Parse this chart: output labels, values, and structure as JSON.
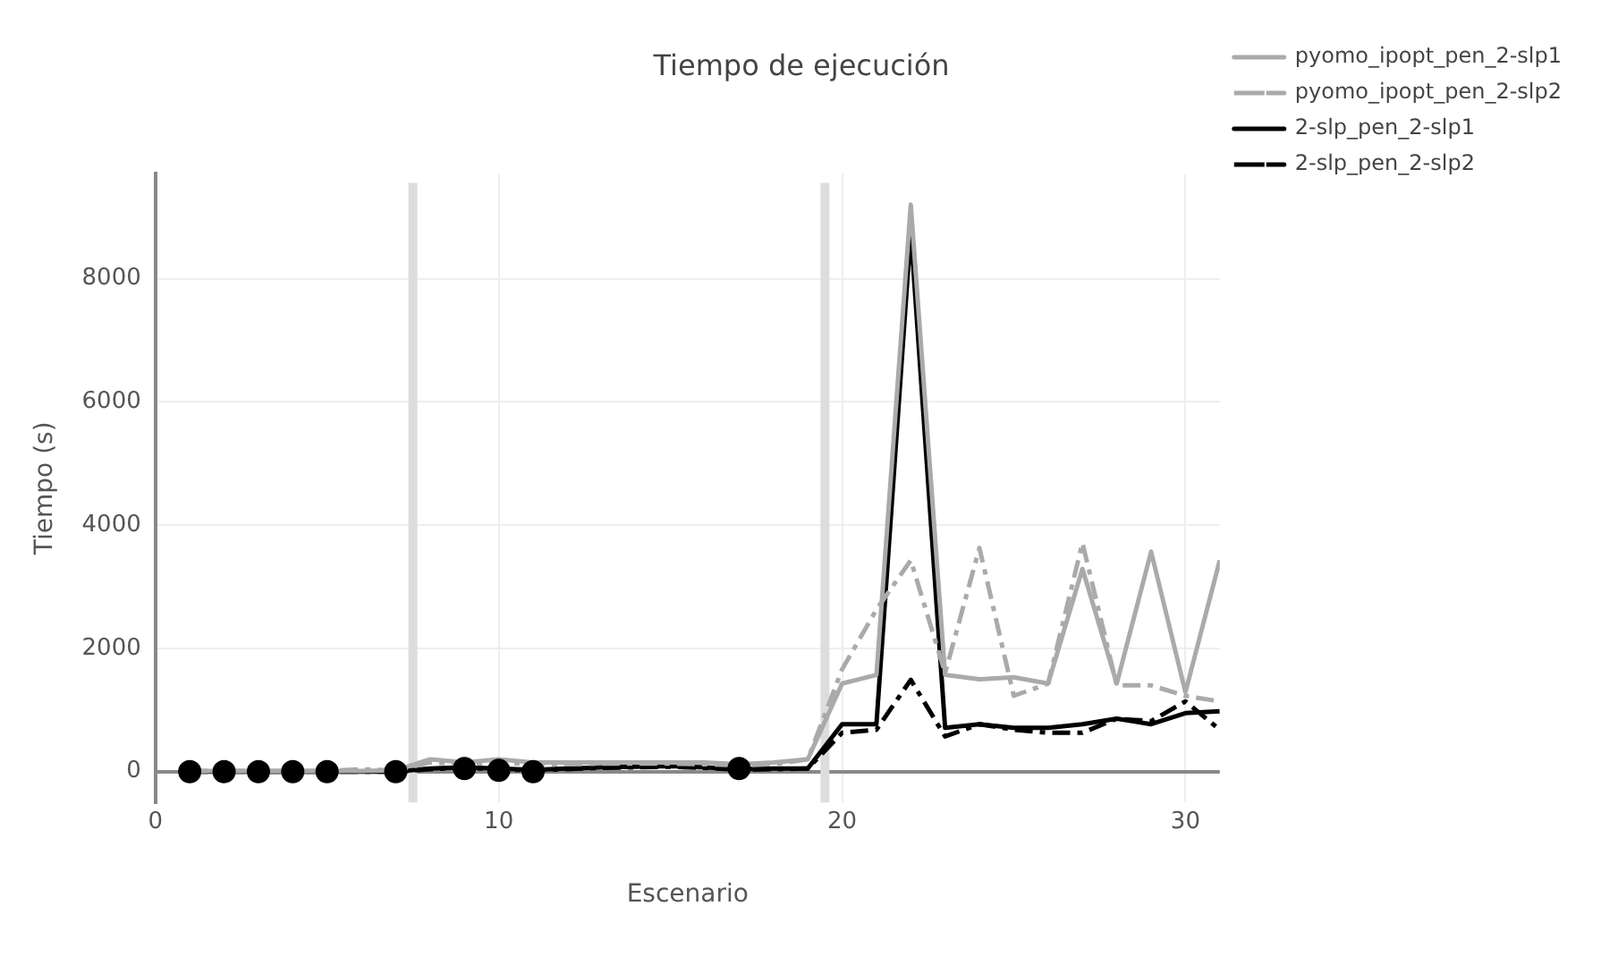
{
  "chart_data": {
    "type": "line",
    "title": "Tiempo de ejecución",
    "xlabel": "Escenario",
    "ylabel": "Tiempo (s)",
    "x": [
      1,
      2,
      3,
      4,
      5,
      6,
      7,
      8,
      9,
      10,
      11,
      12,
      13,
      14,
      15,
      16,
      17,
      18,
      19,
      20,
      21,
      22,
      23,
      24,
      25,
      26,
      27,
      28,
      29,
      30,
      31
    ],
    "xlim": [
      0,
      31
    ],
    "xticks": [
      0,
      10,
      20,
      30
    ],
    "ylim": [
      -500,
      9700
    ],
    "yticks": [
      0,
      2000,
      4000,
      6000,
      8000
    ],
    "grid": true,
    "legend": "top right",
    "marker": "none",
    "ref_lines": [
      {
        "axis": "x",
        "value": 7.5,
        "color": "#dddddd"
      },
      {
        "axis": "x",
        "value": 19.5,
        "color": "#dddddd"
      }
    ],
    "series": [
      {
        "name": "pyomo_ipopt_pen_2-slp1",
        "color": "#aaaaaa",
        "line_style": "solid",
        "values": [
          10,
          10,
          10,
          10,
          10,
          10,
          20,
          200,
          150,
          200,
          150,
          150,
          150,
          150,
          150,
          150,
          120,
          150,
          200,
          1430,
          1570,
          9200,
          1570,
          1500,
          1530,
          1430,
          3290,
          1430,
          3570,
          1290,
          3430
        ]
      },
      {
        "name": "pyomo_ipopt_pen_2-slp2",
        "color": "#aaaaaa",
        "line_style": "dashed",
        "values": [
          10,
          10,
          10,
          10,
          10,
          40,
          20,
          150,
          120,
          150,
          120,
          120,
          130,
          130,
          130,
          120,
          100,
          120,
          200,
          1660,
          2630,
          3430,
          1600,
          3630,
          1230,
          1430,
          3710,
          1400,
          1400,
          1230,
          1140
        ]
      },
      {
        "name": "2-slp_pen_2-slp1",
        "color": "#000000",
        "line_style": "solid",
        "values": [
          0,
          0,
          0,
          0,
          0,
          0,
          0,
          50,
          70,
          50,
          30,
          50,
          70,
          80,
          90,
          70,
          40,
          50,
          50,
          770,
          770,
          8770,
          710,
          770,
          710,
          710,
          770,
          860,
          770,
          950,
          980
        ]
      },
      {
        "name": "2-slp_pen_2-slp2",
        "color": "#000000",
        "line_style": "dashed",
        "values": [
          0,
          0,
          0,
          0,
          0,
          0,
          0,
          40,
          60,
          40,
          20,
          40,
          60,
          70,
          80,
          60,
          30,
          40,
          50,
          630,
          680,
          1490,
          570,
          770,
          680,
          630,
          630,
          860,
          820,
          1140,
          680
        ]
      },
      {
        "type": "scatter",
        "color": "#000000",
        "marker": "circle",
        "x": [
          1,
          2,
          3,
          4,
          5,
          7,
          9,
          10,
          11,
          17
        ],
        "values": [
          0,
          0,
          0,
          0,
          0,
          0,
          50,
          20,
          0,
          50
        ]
      }
    ]
  }
}
